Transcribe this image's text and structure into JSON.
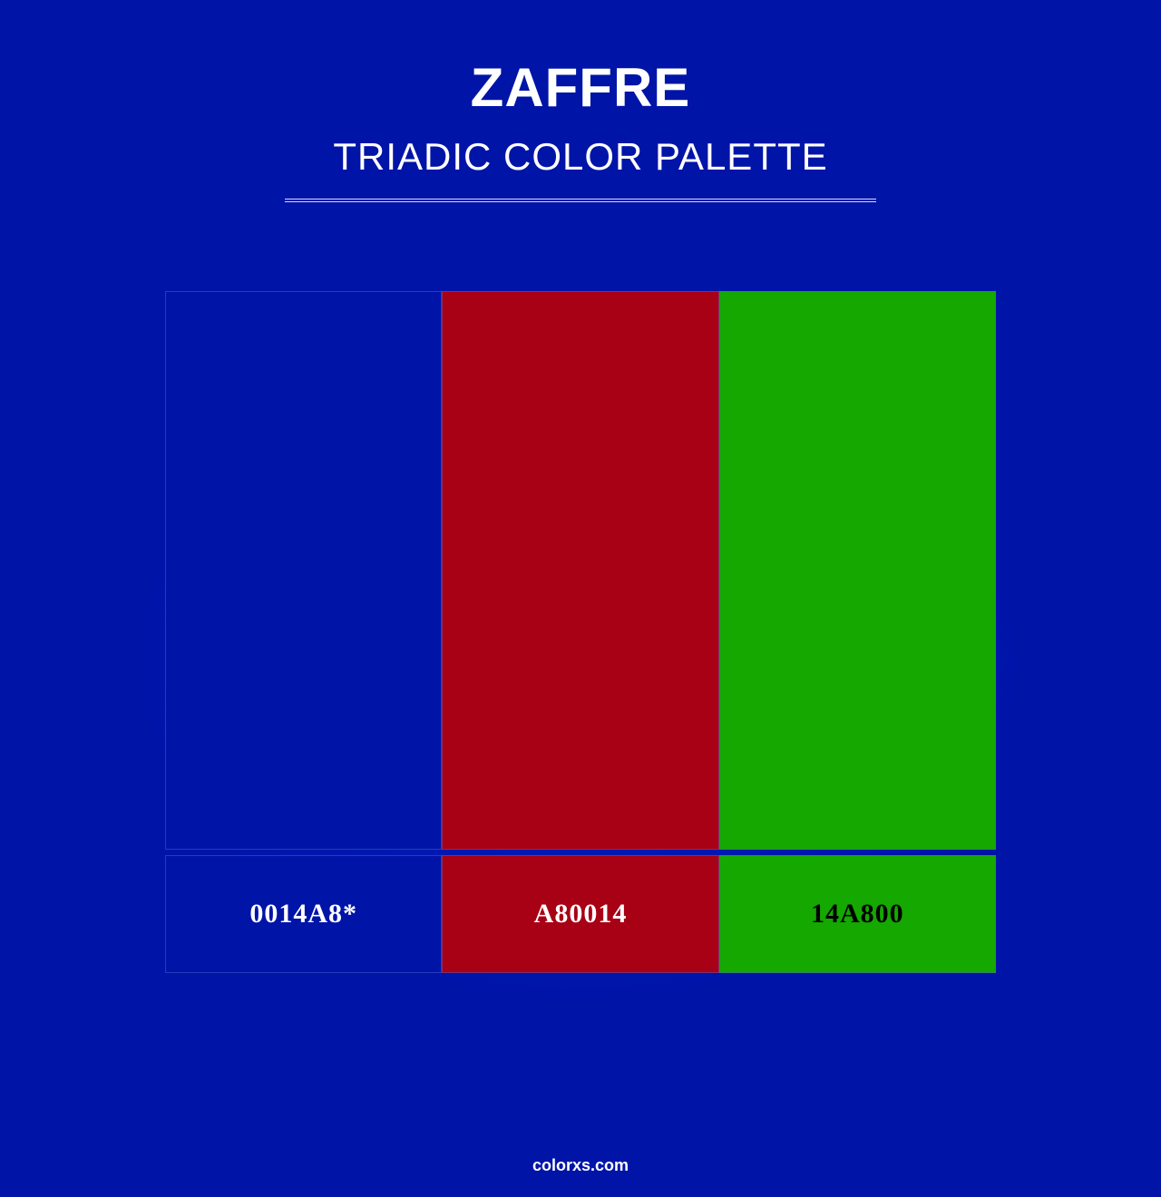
{
  "header": {
    "title": "ZAFFRE",
    "subtitle": "TRIADIC COLOR PALETTE",
    "title_color": "#ffffff",
    "subtitle_color": "#ffffff",
    "title_fontsize": 60,
    "subtitle_fontsize": 42,
    "divider_color": "#ffffff",
    "divider_width": 652
  },
  "background": {
    "base_color": "#0014a8",
    "glow_color": "#001fc0"
  },
  "palette": {
    "type": "infographic",
    "layout": "triadic",
    "container_width": 916,
    "swatch_height": 616,
    "label_height": 130,
    "row_gap": 6,
    "border_color": "rgba(80,100,200,0.5)",
    "colors": [
      {
        "hex": "#0014a8",
        "label": "0014A8*",
        "label_text_color": "#ffffff"
      },
      {
        "hex": "#a80014",
        "label": "A80014",
        "label_text_color": "#ffffff"
      },
      {
        "hex": "#14a800",
        "label": "14A800",
        "label_text_color": "#000000"
      }
    ],
    "label_fontsize": 30,
    "label_fontweight": 700
  },
  "footer": {
    "text": "colorxs.com",
    "color": "#ffffff",
    "fontsize": 18
  }
}
